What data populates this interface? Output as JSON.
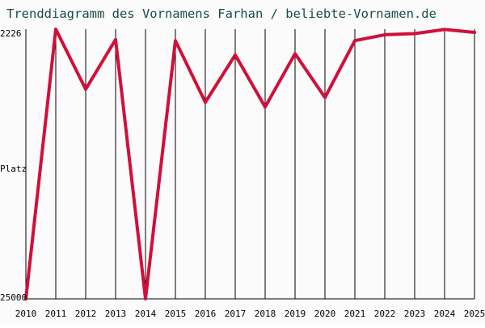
{
  "chart_data": {
    "type": "line",
    "title": "Trenddiagramm des Vornamens Farhan / beliebte-Vornamen.de",
    "xlabel": "",
    "ylabel": "Platz",
    "y_axis_inverted": true,
    "y_tick_labels": [
      "2226",
      "25000"
    ],
    "ylim": [
      2226,
      25000
    ],
    "grid": "vertical lines at each year",
    "line_color": "#d0103a",
    "categories": [
      "2010",
      "2011",
      "2012",
      "2013",
      "2014",
      "2015",
      "2016",
      "2017",
      "2018",
      "2019",
      "2020",
      "2021",
      "2022",
      "2023",
      "2024",
      "2025"
    ],
    "series": [
      {
        "values": [
          25000,
          2226,
          7300,
          3100,
          25000,
          3200,
          8400,
          4400,
          8800,
          4300,
          8000,
          3200,
          2700,
          2600,
          2250,
          2500
        ]
      }
    ]
  }
}
